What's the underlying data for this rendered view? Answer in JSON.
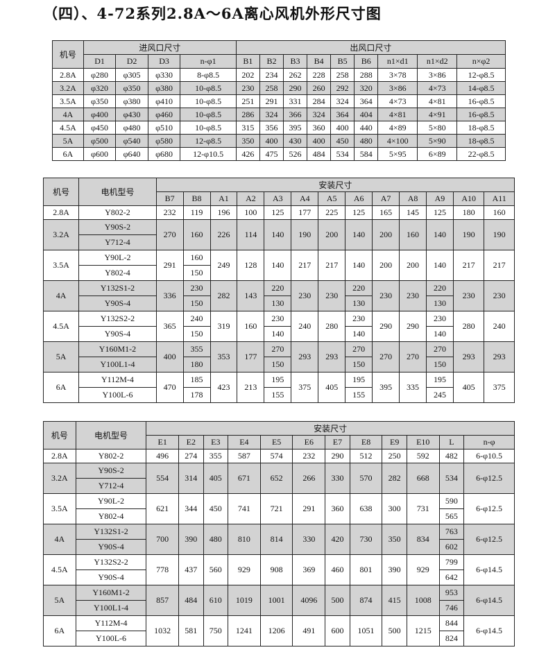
{
  "title": "（四）、4-72系列2.8A～6A离心风机外形尺寸图",
  "table1": {
    "model_header": "机号",
    "groups": [
      {
        "label": "进风口尺寸",
        "span": 4
      },
      {
        "label": "出风口尺寸",
        "span": 9
      }
    ],
    "columns": [
      "D1",
      "D2",
      "D3",
      "n-φ1",
      "B1",
      "B2",
      "B3",
      "B4",
      "B5",
      "B6",
      "n1×d1",
      "n1×d2",
      "n×φ2"
    ],
    "rows": [
      [
        "2.8A",
        "φ280",
        "φ305",
        "φ330",
        "8-φ8.5",
        "202",
        "234",
        "262",
        "228",
        "258",
        "288",
        "3×78",
        "3×86",
        "12-φ8.5"
      ],
      [
        "3.2A",
        "φ320",
        "φ350",
        "φ380",
        "10-φ8.5",
        "230",
        "258",
        "290",
        "260",
        "292",
        "320",
        "3×86",
        "4×73",
        "14-φ8.5"
      ],
      [
        "3.5A",
        "φ350",
        "φ380",
        "φ410",
        "10-φ8.5",
        "251",
        "291",
        "331",
        "284",
        "324",
        "364",
        "4×73",
        "4×81",
        "16-φ8.5"
      ],
      [
        "4A",
        "φ400",
        "φ430",
        "φ460",
        "10-φ8.5",
        "286",
        "324",
        "366",
        "324",
        "364",
        "404",
        "4×81",
        "4×91",
        "16-φ8.5"
      ],
      [
        "4.5A",
        "φ450",
        "φ480",
        "φ510",
        "10-φ8.5",
        "315",
        "356",
        "395",
        "360",
        "400",
        "440",
        "4×89",
        "5×80",
        "18-φ8.5"
      ],
      [
        "5A",
        "φ500",
        "φ540",
        "φ580",
        "12-φ8.5",
        "350",
        "400",
        "430",
        "400",
        "450",
        "480",
        "4×100",
        "5×90",
        "18-φ8.5"
      ],
      [
        "6A",
        "φ600",
        "φ640",
        "φ680",
        "12-φ10.5",
        "426",
        "475",
        "526",
        "484",
        "534",
        "584",
        "5×95",
        "6×89",
        "22-φ8.5"
      ]
    ]
  },
  "table2": {
    "model_header": "机号",
    "motor_header": "电机型号",
    "groups": [
      {
        "label": "安装尺寸",
        "span": 13
      }
    ],
    "columns": [
      "B7",
      "B8",
      "A1",
      "A2",
      "A3",
      "A4",
      "A5",
      "A6",
      "A7",
      "A8",
      "A9",
      "A10",
      "A11"
    ],
    "rows": [
      [
        "2.8A",
        "Y802-2",
        "232",
        "119",
        "196",
        "100",
        "125",
        "177",
        "225",
        "125",
        "165",
        "145",
        "125",
        "180",
        "160"
      ],
      [
        "3.2A",
        [
          "Y90S-2",
          "Y712-4"
        ],
        "270",
        "160",
        "226",
        "114",
        "140",
        "190",
        "200",
        "140",
        "200",
        "160",
        "140",
        "190",
        "190"
      ],
      [
        "3.5A",
        [
          "Y90L-2",
          "Y802-4"
        ],
        "291",
        [
          "160",
          "150"
        ],
        "249",
        "128",
        "140",
        "217",
        "217",
        "140",
        "200",
        "200",
        "140",
        "217",
        "217"
      ],
      [
        "4A",
        [
          "Y132S1-2",
          "Y90S-4"
        ],
        "336",
        [
          "230",
          "150"
        ],
        "282",
        "143",
        [
          "220",
          "130"
        ],
        "230",
        "230",
        [
          "220",
          "130"
        ],
        "230",
        "230",
        [
          "220",
          "130"
        ],
        "230",
        "230"
      ],
      [
        "4.5A",
        [
          "Y132S2-2",
          "Y90S-4"
        ],
        "365",
        [
          "240",
          "150"
        ],
        "319",
        "160",
        [
          "230",
          "140"
        ],
        "240",
        "280",
        [
          "230",
          "140"
        ],
        "290",
        "290",
        [
          "230",
          "140"
        ],
        "280",
        "240"
      ],
      [
        "5A",
        [
          "Y160M1-2",
          "Y100L1-4"
        ],
        "400",
        [
          "355",
          "180"
        ],
        "353",
        "177",
        [
          "270",
          "150"
        ],
        "293",
        "293",
        [
          "270",
          "150"
        ],
        "270",
        "270",
        [
          "270",
          "150"
        ],
        "293",
        "293"
      ],
      [
        "6A",
        [
          "Y112M-4",
          "Y100L-6"
        ],
        "470",
        [
          "185",
          "178"
        ],
        "423",
        "213",
        [
          "195",
          "155"
        ],
        "375",
        "405",
        [
          "195",
          "155"
        ],
        "395",
        "335",
        [
          "195",
          "245"
        ],
        "405",
        "375"
      ]
    ]
  },
  "table3": {
    "model_header": "机号",
    "motor_header": "电机型号",
    "groups": [
      {
        "label": "安装尺寸",
        "span": 12
      }
    ],
    "columns": [
      "E1",
      "E2",
      "E3",
      "E4",
      "E5",
      "E6",
      "E7",
      "E8",
      "E9",
      "E10",
      "L",
      "n-φ"
    ],
    "rows": [
      [
        "2.8A",
        "Y802-2",
        "496",
        "274",
        "355",
        "587",
        "574",
        "232",
        "290",
        "512",
        "250",
        "592",
        "482",
        "6-φ10.5"
      ],
      [
        "3.2A",
        [
          "Y90S-2",
          "Y712-4"
        ],
        "554",
        "314",
        "405",
        "671",
        "652",
        "266",
        "330",
        "570",
        "282",
        "668",
        "534",
        "6-φ12.5"
      ],
      [
        "3.5A",
        [
          "Y90L-2",
          "Y802-4"
        ],
        "621",
        "344",
        "450",
        "741",
        "721",
        "291",
        "360",
        "638",
        "300",
        "731",
        [
          "590",
          "565"
        ],
        "6-φ12.5"
      ],
      [
        "4A",
        [
          "Y132S1-2",
          "Y90S-4"
        ],
        "700",
        "390",
        "480",
        "810",
        "814",
        "330",
        "420",
        "730",
        "350",
        "834",
        [
          "763",
          "602"
        ],
        "6-φ12.5"
      ],
      [
        "4.5A",
        [
          "Y132S2-2",
          "Y90S-4"
        ],
        "778",
        "437",
        "560",
        "929",
        "908",
        "369",
        "460",
        "801",
        "390",
        "929",
        [
          "799",
          "642"
        ],
        "6-φ14.5"
      ],
      [
        "5A",
        [
          "Y160M1-2",
          "Y100L1-4"
        ],
        "857",
        "484",
        "610",
        "1019",
        "1001",
        "4096",
        "500",
        "874",
        "415",
        "1008",
        [
          "953",
          "746"
        ],
        "6-φ14.5"
      ],
      [
        "6A",
        [
          "Y112M-4",
          "Y100L-6"
        ],
        "1032",
        "581",
        "750",
        "1241",
        "1206",
        "491",
        "600",
        "1051",
        "500",
        "1215",
        [
          "844",
          "824"
        ],
        "6-φ14.5"
      ]
    ]
  }
}
